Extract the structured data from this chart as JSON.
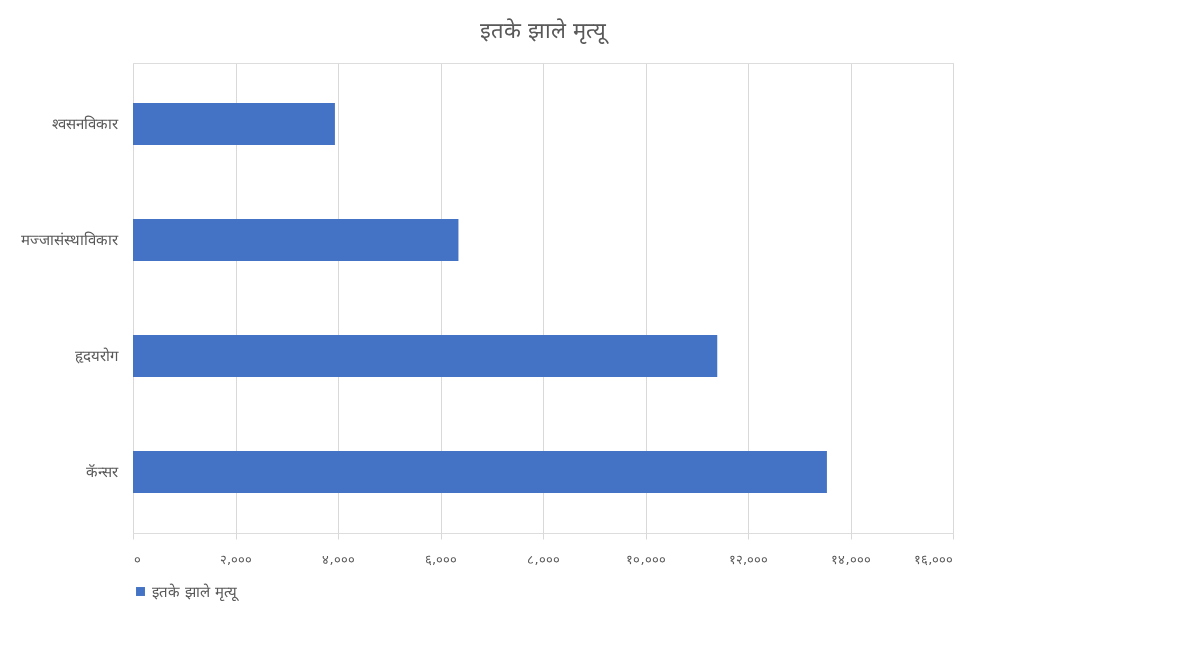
{
  "chart_data": {
    "type": "bar",
    "orientation": "horizontal",
    "title": "इतके झाले मृत्यू",
    "categories": [
      "श्वसनविकार",
      "मज्जासंस्थाविकार",
      "हृदयरोग",
      "कॅन्सर"
    ],
    "series": [
      {
        "name": "इतके झाले मृत्यू",
        "color": "#4472c4",
        "values": [
          3940,
          6350,
          11400,
          13540
        ]
      }
    ],
    "xlim": [
      0,
      16000
    ],
    "xticks": [
      {
        "value": 0,
        "label": "०"
      },
      {
        "value": 2000,
        "label": "२,०००"
      },
      {
        "value": 4000,
        "label": "४,०००"
      },
      {
        "value": 6000,
        "label": "६,०००"
      },
      {
        "value": 8000,
        "label": "८,०००"
      },
      {
        "value": 10000,
        "label": "१०,०००"
      },
      {
        "value": 12000,
        "label": "१२,०००"
      },
      {
        "value": 14000,
        "label": "१४,०००"
      },
      {
        "value": 16000,
        "label": "१६,०००"
      }
    ],
    "grid": "x",
    "legend": "bottom"
  }
}
